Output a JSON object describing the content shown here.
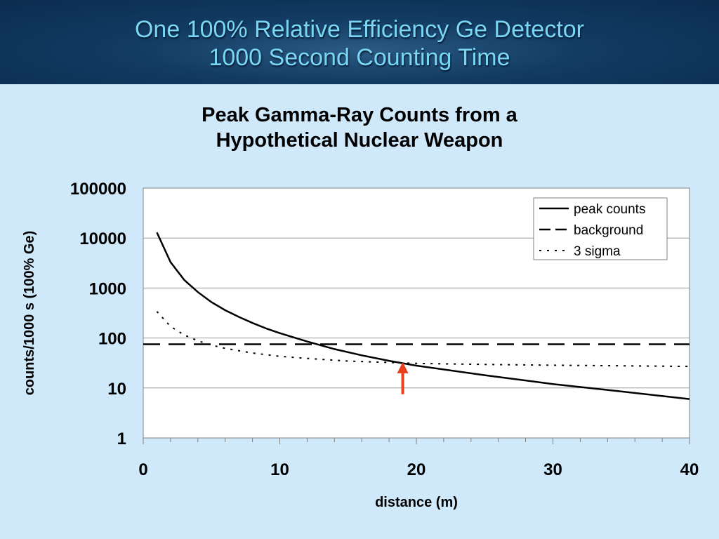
{
  "slide": {
    "title_line1": "One 100% Relative Efficiency Ge Detector",
    "title_line2": "1000 Second Counting Time"
  },
  "colors": {
    "header_bg": "#0b2c4f",
    "header_text": "#7ad6f2",
    "page_bg": "#cfe9fb",
    "arrow": "#e8401c"
  },
  "chart_data": {
    "type": "line",
    "title": "Peak Gamma-Ray Counts from a Hypothetical Nuclear Weapon",
    "title_line1": "Peak Gamma-Ray Counts from a",
    "title_line2": "Hypothetical Nuclear Weapon",
    "xlabel": "distance (m)",
    "ylabel": "counts/1000 s (100% Ge)",
    "xlim": [
      0,
      40
    ],
    "ylim": [
      1,
      100000
    ],
    "yscale": "log",
    "x_ticks": [
      0,
      10,
      20,
      30,
      40
    ],
    "y_ticks": [
      1,
      10,
      100,
      1000,
      10000,
      100000
    ],
    "y_tick_labels": [
      "1",
      "10",
      "100",
      "1000",
      "10000",
      "100000"
    ],
    "grid": "horizontal",
    "legend_position": "top-right",
    "series": [
      {
        "name": "peak counts",
        "style": "solid",
        "x": [
          1,
          2,
          3,
          4,
          5,
          6,
          7,
          8,
          9,
          10,
          12,
          14,
          16,
          18,
          20,
          25,
          30,
          35,
          40
        ],
        "y": [
          13000,
          3300,
          1450,
          830,
          520,
          360,
          265,
          200,
          155,
          125,
          85,
          60,
          45,
          35,
          28,
          18,
          12,
          8.5,
          6
        ]
      },
      {
        "name": "background",
        "style": "dashed",
        "x": [
          0,
          40
        ],
        "y": [
          75,
          75
        ]
      },
      {
        "name": "3 sigma",
        "style": "dotted",
        "x": [
          1,
          2,
          3,
          4,
          5,
          6,
          8,
          10,
          12,
          15,
          20,
          25,
          30,
          35,
          40
        ],
        "y": [
          340,
          170,
          115,
          88,
          72,
          62,
          50,
          43,
          39,
          34.5,
          31,
          29.5,
          28.5,
          27.8,
          27
        ]
      }
    ],
    "annotations": [
      {
        "type": "arrow",
        "x": 19,
        "y_from": 7.5,
        "y_to": 33,
        "description": "crossover point"
      }
    ]
  }
}
